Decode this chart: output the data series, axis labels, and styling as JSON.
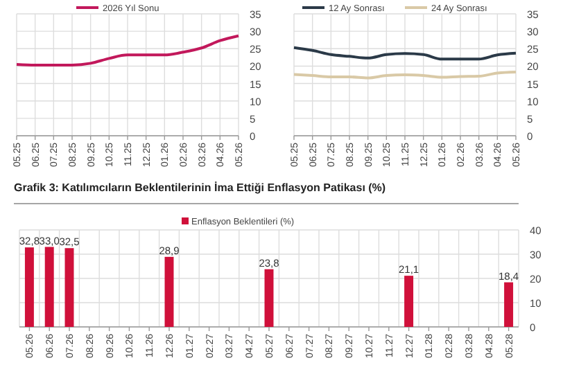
{
  "chart_data": [
    {
      "type": "line",
      "categories": [
        "05.25",
        "06.25",
        "07.25",
        "08.25",
        "09.25",
        "10.25",
        "11.25",
        "12.25",
        "01.26",
        "02.26",
        "03.26",
        "04.26",
        "05.26"
      ],
      "series": [
        {
          "name": "2026 Yıl Sonu",
          "color": "#c2185b",
          "values": [
            20.5,
            20.3,
            20.3,
            20.3,
            20.8,
            22.2,
            23.2,
            23.2,
            23.2,
            24.0,
            25.2,
            27.3,
            28.7
          ]
        }
      ],
      "ylim": [
        0,
        35
      ],
      "yticks": [
        0,
        5,
        10,
        15,
        20,
        25,
        30,
        35
      ],
      "grid": true,
      "legend": "top",
      "marker": "none"
    },
    {
      "type": "line",
      "categories": [
        "05.25",
        "06.25",
        "07.25",
        "08.25",
        "09.25",
        "10.25",
        "11.25",
        "12.25",
        "01.26",
        "02.26",
        "03.26",
        "04.26",
        "05.26"
      ],
      "series": [
        {
          "name": "12 Ay Sonrası",
          "color": "#2b3a48",
          "values": [
            25.3,
            24.5,
            23.3,
            22.8,
            22.3,
            23.3,
            23.6,
            23.3,
            22.0,
            22.0,
            22.0,
            23.2,
            23.7
          ]
        },
        {
          "name": "24 Ay Sonrası",
          "color": "#d9c9a6",
          "values": [
            17.6,
            17.3,
            16.9,
            16.9,
            16.6,
            17.3,
            17.5,
            17.3,
            16.8,
            17.0,
            17.1,
            18.0,
            18.3
          ]
        }
      ],
      "ylim": [
        0,
        35
      ],
      "yticks": [
        0,
        5,
        10,
        15,
        20,
        25,
        30,
        35
      ],
      "grid": true,
      "legend": "top",
      "marker": "none"
    },
    {
      "type": "bar",
      "title": "Grafik 3: Katılımcıların Beklentilerinin İma Ettiği Enflasyon Patikası (%)",
      "categories": [
        "05.26",
        "06.26",
        "07.26",
        "08.26",
        "09.26",
        "10.26",
        "11.26",
        "12.26",
        "01.27",
        "02.27",
        "03.27",
        "04.27",
        "05.27",
        "06.27",
        "07.27",
        "08.27",
        "09.27",
        "10.27",
        "11.27",
        "12.27",
        "01.28",
        "02.28",
        "03.28",
        "04.28",
        "05.28"
      ],
      "series": [
        {
          "name": "Enflasyon Beklentileri (%)",
          "color": "#d0103a",
          "values": [
            32.8,
            33.0,
            32.5,
            null,
            null,
            null,
            null,
            28.9,
            null,
            null,
            null,
            null,
            23.8,
            null,
            null,
            null,
            null,
            null,
            null,
            21.1,
            null,
            null,
            null,
            null,
            18.4
          ],
          "value_labels": [
            "32,8",
            "33,0",
            "32,5",
            null,
            null,
            null,
            null,
            "28,9",
            null,
            null,
            null,
            null,
            "23,8",
            null,
            null,
            null,
            null,
            null,
            null,
            "21,1",
            null,
            null,
            null,
            null,
            "18,4"
          ]
        }
      ],
      "ylim": [
        0,
        40
      ],
      "yticks": [
        0,
        10,
        20,
        30,
        40
      ],
      "grid": true,
      "legend": "top"
    }
  ]
}
